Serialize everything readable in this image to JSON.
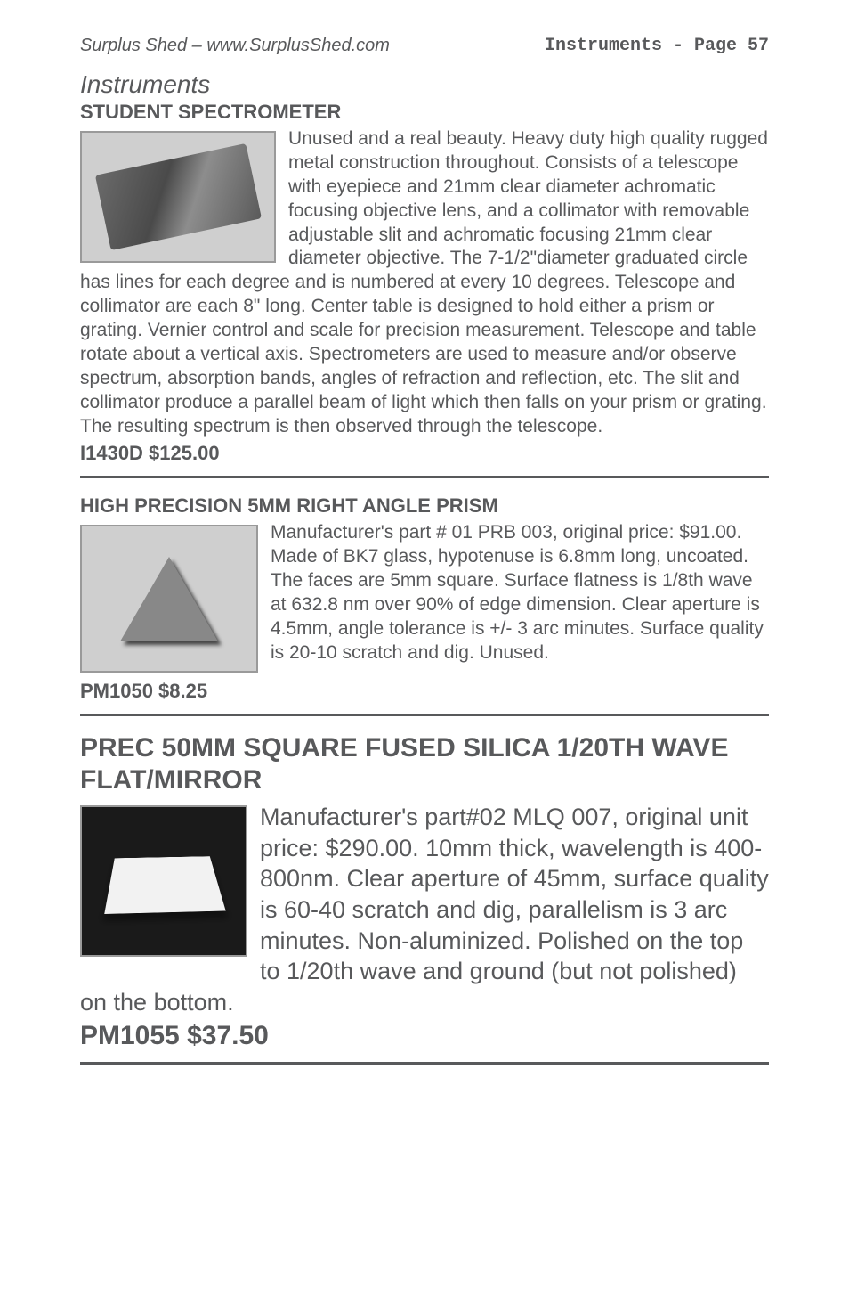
{
  "header": {
    "left": "Surplus Shed – www.SurplusShed.com",
    "right": "Instruments - Page 57"
  },
  "section_heading": "Instruments",
  "items": [
    {
      "title": "STUDENT SPECTROMETER",
      "body": "Unused and a real beauty.  Heavy duty high quality rugged metal construction throughout.  Consists of a telescope with eyepiece and 21mm clear diameter achromatic focusing objective lens, and a collimator with removable adjustable slit and achromatic focusing 21mm clear diameter objective.  The 7-1/2\"diameter graduated circle has lines for each degree and is numbered at every 10 degrees.  Telescope and collimator are each 8\" long.  Center table is designed to hold either a prism or grating. Vernier control and scale for precision measurement.  Telescope and table rotate about a vertical axis.  Spectrometers are used to measure and/or observe spectrum, absorption bands, angles of refraction and reflection, etc.  The slit and collimator produce a parallel beam of light which then falls on your prism or grating.  The resulting spectrum is then observed through the telescope.",
      "sku": "I1430D    $125.00"
    },
    {
      "title": "HIGH PRECISION 5MM RIGHT ANGLE PRISM",
      "body": "Manufacturer's part # 01 PRB 003, original price: $91.00. Made of BK7 glass, hypotenuse is 6.8mm long, uncoated.   The faces are 5mm square.   Surface flatness is 1/8th   wave at 632.8 nm over 90% of edge dimension.   Clear aperture is 4.5mm, angle tolerance is +/- 3 arc minutes. Surface quality is 20-10 scratch and dig.   Unused.",
      "sku": "PM1050   $8.25"
    },
    {
      "title": "PREC 50MM SQUARE FUSED SILICA 1/20TH WAVE FLAT/MIRROR",
      "body": "Manufacturer's part#02 MLQ 007, original unit price: $290.00. 10mm thick, wavelength is 400-800nm. Clear aperture of 45mm, surface quality is 60-40 scratch and dig, parallelism is 3 arc minutes. Non-aluminized. Polished on the top to 1/20th wave and ground (but not polished) on the bottom.",
      "sku": "PM1055     $37.50"
    }
  ]
}
